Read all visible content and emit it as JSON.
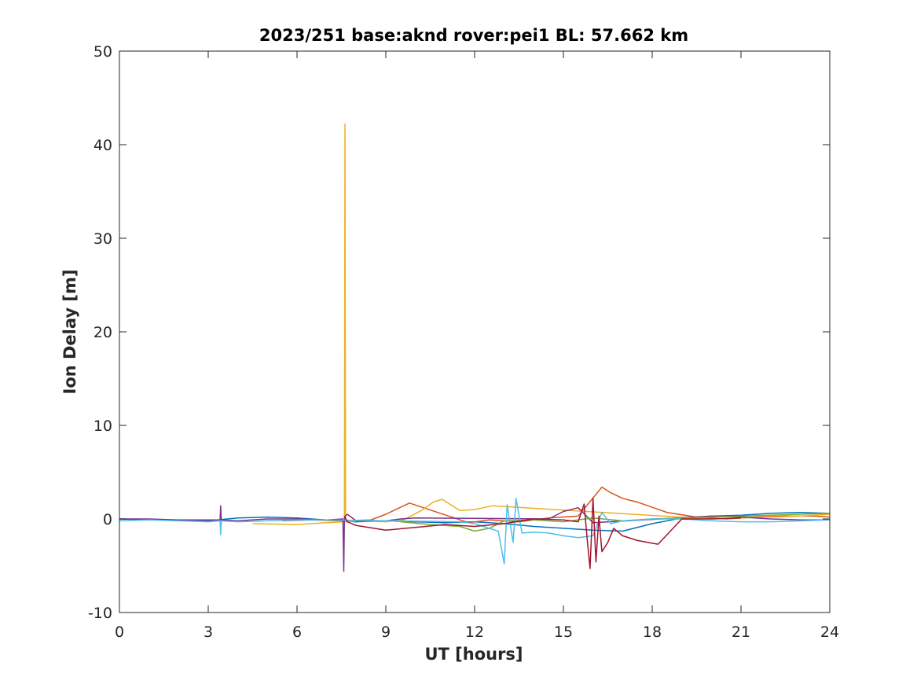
{
  "chart_data": {
    "type": "line",
    "title": "2023/251 base:aknd rover:pei1 BL: 57.662 km",
    "xlabel": "UT [hours]",
    "ylabel": "Ion Delay [m]",
    "xlim": [
      0,
      24
    ],
    "ylim": [
      -10,
      50
    ],
    "xticks": [
      0,
      3,
      6,
      9,
      12,
      15,
      18,
      21,
      24
    ],
    "yticks": [
      -10,
      0,
      10,
      20,
      30,
      40,
      50
    ],
    "grid": false,
    "legend": "none",
    "series": [
      {
        "color": "#0072BD",
        "x": [
          0,
          1,
          2,
          3,
          4,
          5,
          6,
          7,
          8,
          9,
          10,
          11,
          12,
          13,
          14,
          15,
          16,
          17,
          18,
          19,
          20,
          21,
          22,
          23,
          24
        ],
        "y": [
          0,
          -0.1,
          -0.1,
          -0.2,
          0.1,
          0.2,
          0.1,
          -0.1,
          -0.3,
          -0.2,
          -0.3,
          -0.4,
          -0.3,
          -0.5,
          -0.8,
          -1.0,
          -1.2,
          -1.3,
          -0.5,
          0.1,
          0.3,
          0.4,
          0.6,
          0.7,
          0.6
        ]
      },
      {
        "color": "#D95319",
        "x": [
          5.5,
          6.5,
          7.5,
          8.5,
          9.0,
          9.8,
          11.8,
          12.5,
          13.5,
          14.5,
          15.5,
          16.3,
          16.6,
          17.0,
          17.5,
          18.5,
          19.5,
          20.5,
          21.5,
          22.5,
          23.5,
          24
        ],
        "y": [
          -0.2,
          -0.1,
          -0.2,
          -0.1,
          0.5,
          1.7,
          -0.4,
          -0.1,
          -0.3,
          0.1,
          0.3,
          3.4,
          2.8,
          2.2,
          1.8,
          0.7,
          0.2,
          0.0,
          0.2,
          0.3,
          0.3,
          0.2
        ]
      },
      {
        "color": "#EDB120",
        "x": [
          4.5,
          6.0,
          7.0,
          7.6,
          7.62,
          7.64,
          8.0,
          9.0,
          9.6,
          10.2,
          10.6,
          10.9,
          11.5,
          12.0,
          12.6,
          20.0,
          21.0,
          22.0,
          23.0,
          24.0
        ],
        "y": [
          -0.5,
          -0.6,
          -0.4,
          -0.3,
          42.2,
          -0.3,
          -0.2,
          -0.3,
          -0.1,
          0.9,
          1.8,
          2.1,
          0.9,
          1.0,
          1.4,
          0.0,
          0.1,
          0.2,
          0.3,
          0.5
        ]
      },
      {
        "color": "#7E2F8E",
        "x": [
          0,
          1,
          2,
          3,
          3.4,
          3.42,
          3.44,
          4,
          5,
          6,
          7,
          7.55,
          7.58,
          7.6,
          7.7,
          8.0,
          9.0,
          9.5,
          10.0,
          14.5,
          15.0,
          15.5,
          16.0,
          20.0,
          21.0,
          22.0,
          23.0,
          24.0
        ],
        "y": [
          0,
          0.0,
          -0.1,
          -0.1,
          -0.1,
          1.4,
          -0.1,
          -0.2,
          0.0,
          0.0,
          -0.1,
          0.0,
          -5.6,
          0.2,
          0.5,
          -0.2,
          -0.2,
          0.0,
          0.1,
          0.0,
          0.8,
          1.2,
          -0.4,
          0.3,
          0.2,
          0.0,
          -0.1,
          -0.1
        ]
      },
      {
        "color": "#77AC30",
        "x": [
          9.5,
          10.5,
          11.5,
          12.0,
          12.5,
          13.0,
          14.0,
          15.0,
          16.0,
          17.0,
          18.0,
          19.0,
          20.0,
          21.0,
          22.0,
          23.0,
          24.0
        ],
        "y": [
          -0.3,
          -0.6,
          -0.8,
          -1.3,
          -1.0,
          -0.2,
          -0.1,
          -0.3,
          0.1,
          -0.2,
          0.0,
          0.1,
          0.2,
          0.3,
          0.4,
          0.5,
          0.6
        ]
      },
      {
        "color": "#4DBEEE",
        "x": [
          0,
          1,
          2,
          3,
          3.4,
          3.42,
          3.44,
          4,
          5,
          6,
          7,
          11.5,
          12.0,
          12.8,
          13.0,
          13.1,
          13.3,
          13.4,
          13.6,
          14.0,
          14.5,
          15.0,
          15.5,
          16.0,
          16.3,
          16.6,
          17.0,
          17.5,
          18.0,
          19.0,
          20.0,
          21.0,
          22.0,
          23.0,
          24.0
        ],
        "y": [
          -0.2,
          -0.1,
          -0.2,
          -0.3,
          -0.2,
          -1.7,
          -0.2,
          -0.3,
          -0.2,
          -0.1,
          -0.1,
          -0.3,
          -0.5,
          -1.3,
          -4.8,
          1.5,
          -2.5,
          2.2,
          -1.5,
          -1.4,
          -1.5,
          -1.8,
          -2.0,
          -1.8,
          0.7,
          -0.5,
          -0.2,
          -0.1,
          0.0,
          0.0,
          -0.2,
          -0.3,
          -0.3,
          -0.2,
          -0.1
        ]
      },
      {
        "color": "#A2142F",
        "x": [
          7.6,
          7.7,
          8.0,
          9.0,
          10.0,
          11.0,
          12.0,
          13.0,
          14.0,
          15.0,
          15.5,
          15.7,
          15.8,
          15.9,
          16.0,
          16.1,
          16.2,
          16.3,
          16.5,
          16.7,
          17.0,
          17.5,
          18.0,
          18.2,
          19.0,
          20.0,
          21.0
        ],
        "y": [
          0.3,
          -0.3,
          -0.7,
          -1.2,
          -0.9,
          -0.6,
          -0.8,
          -0.5,
          0.0,
          -0.1,
          -0.3,
          1.6,
          -2.0,
          -5.3,
          2.2,
          -4.6,
          0.3,
          -3.5,
          -2.5,
          -1.0,
          -1.8,
          -2.3,
          -2.6,
          -2.7,
          0.0,
          0.0,
          0.1
        ]
      }
    ]
  }
}
